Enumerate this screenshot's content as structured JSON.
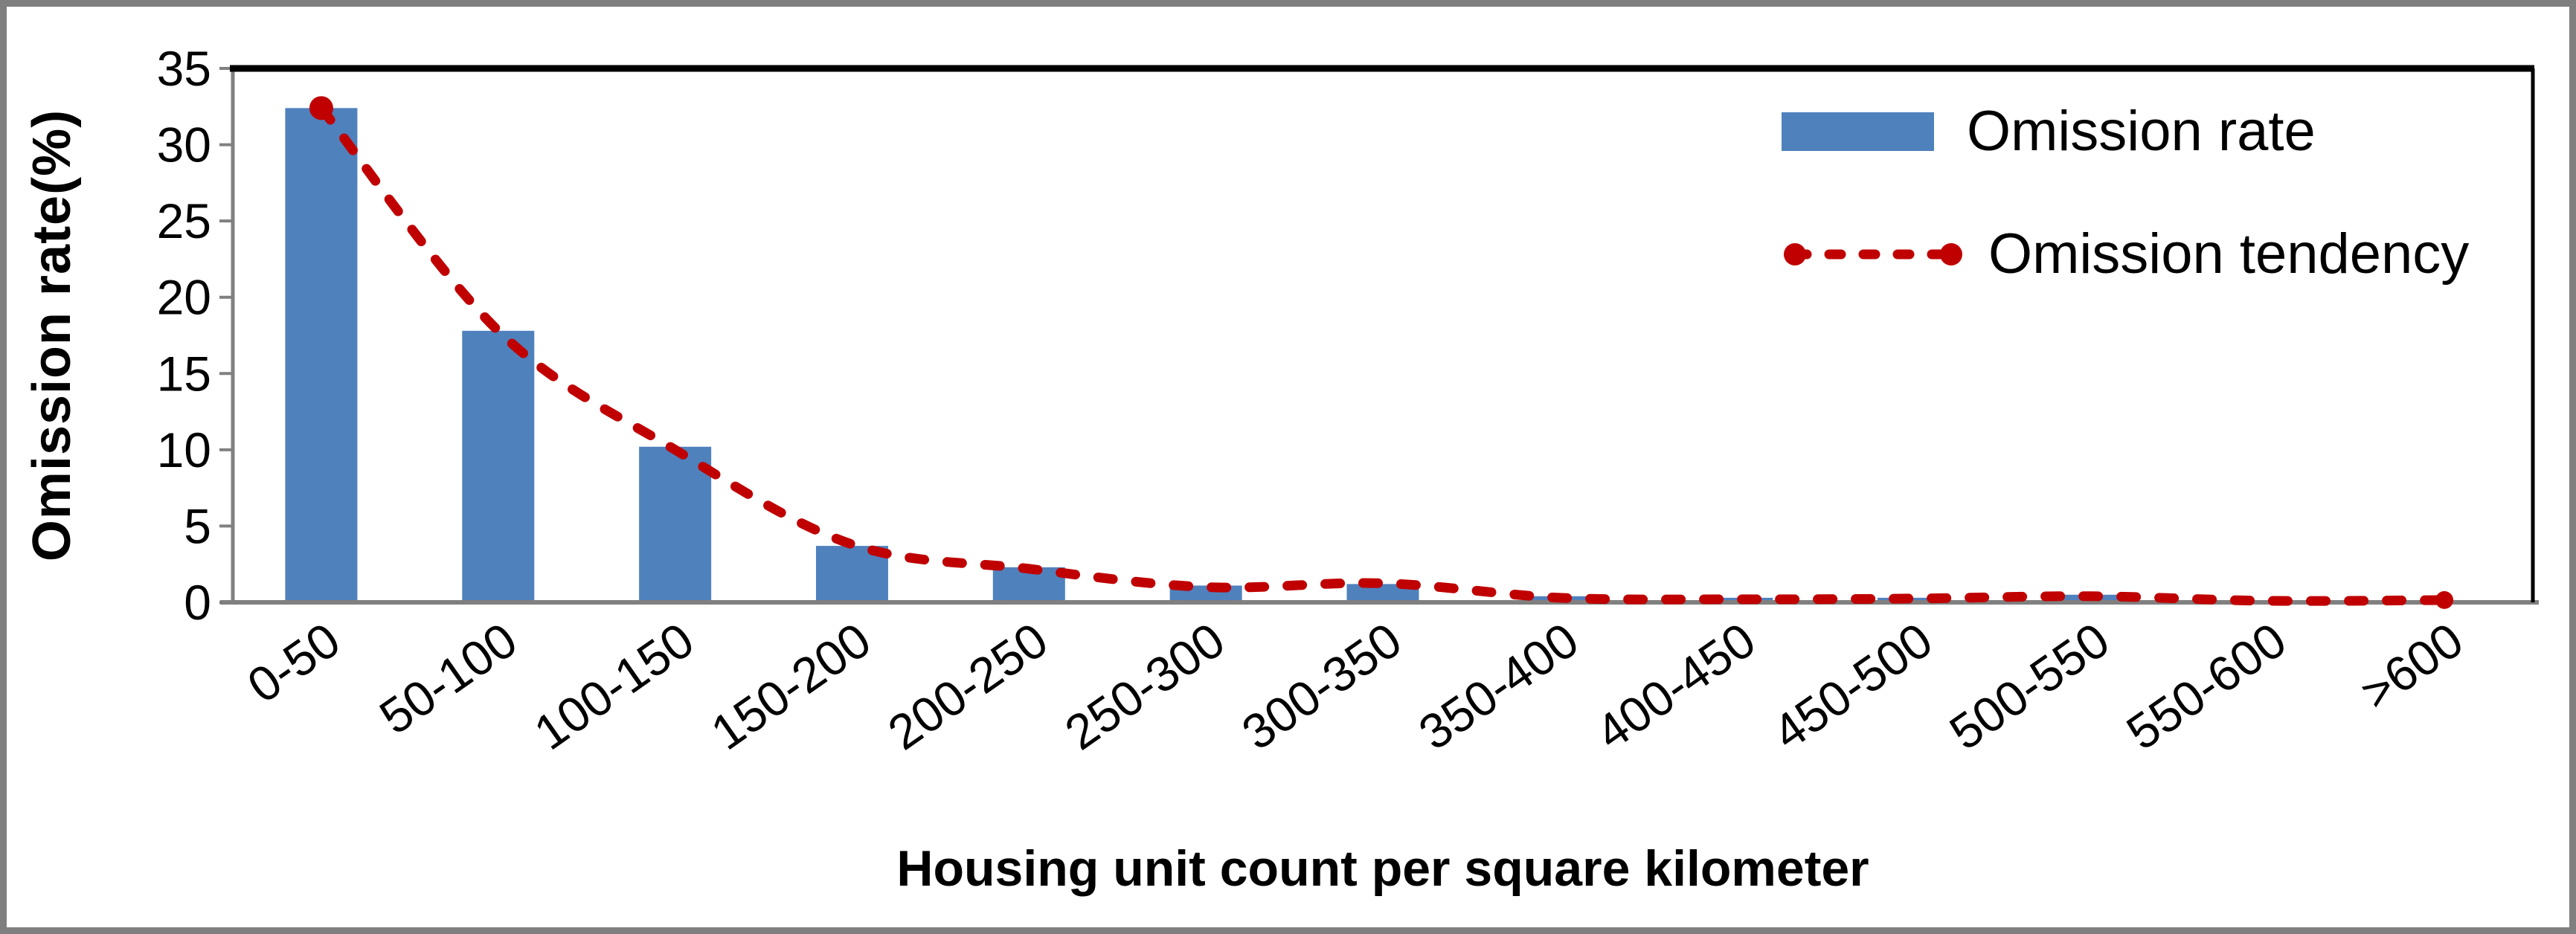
{
  "figure": {
    "background": "#FFFFFF",
    "frame_border_color": "#7F7F7F",
    "axis_line_color": "#808080",
    "plot_top_right_border_color": "#000000"
  },
  "chart_data": {
    "type": "bar",
    "title": "",
    "xlabel": "Housing unit count per square kilometer",
    "ylabel": "Omission rate(%)",
    "categories": [
      "0-50",
      "50-100",
      "100-150",
      "150-200",
      "200-250",
      "250-300",
      "300-350",
      "350-400",
      "400-450",
      "450-500",
      "500-550",
      "550-600",
      ">600"
    ],
    "series": [
      {
        "name": "Omission rate",
        "type": "bar",
        "color": "#4F81BD",
        "values": [
          32.4,
          17.8,
          10.2,
          3.7,
          2.3,
          1.1,
          1.2,
          0.4,
          0.3,
          0.3,
          0.5,
          0.1,
          0.1
        ]
      },
      {
        "name": "Omission tendency",
        "type": "line",
        "style": "dashed-smooth",
        "color": "#C00000",
        "markers": "first-and-last-point",
        "values": [
          32.4,
          17.8,
          10.0,
          3.8,
          2.2,
          1.0,
          1.25,
          0.3,
          0.2,
          0.25,
          0.4,
          0.1,
          0.15
        ]
      }
    ],
    "ylim": [
      0,
      35
    ],
    "y_ticks": [
      0,
      5,
      10,
      15,
      20,
      25,
      30,
      35
    ],
    "x_tick_rotation_deg": -35,
    "grid": false,
    "legend_position": "top-right"
  }
}
